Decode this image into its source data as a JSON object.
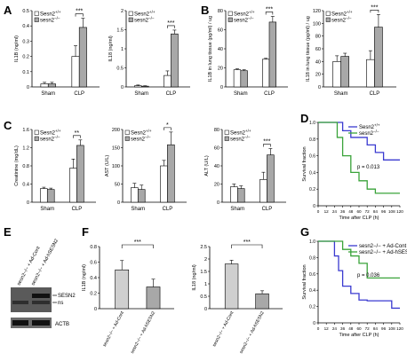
{
  "panel_letters": [
    "A",
    "B",
    "C",
    "D",
    "E",
    "F",
    "G"
  ],
  "western_blot": {
    "lanes": [
      "sesn2−/− + Ad-Cont",
      "sesn2−/− + Ad-hSESN2"
    ],
    "bands": [
      "SESN2",
      "ns",
      "ACTB"
    ]
  },
  "chart_data": [
    {
      "panel": "A",
      "type": "bar",
      "ylabel": "IL1B (ng/ml)",
      "ylim": [
        0,
        0.5
      ],
      "ticks": [
        0,
        0.1,
        0.2,
        0.3,
        0.4,
        0.5
      ],
      "tick_labels": [
        "0",
        "0.1",
        "0.2",
        "0.3",
        "0.4",
        "0.5"
      ],
      "categories": [
        "Sham",
        "CLP"
      ],
      "legend": [
        "Sesn2+/+",
        "sesn2−/−"
      ],
      "series": [
        {
          "name": "Sesn2+/+",
          "values": [
            0.02,
            0.2
          ],
          "errors": [
            0.01,
            0.07
          ]
        },
        {
          "name": "sesn2−/−",
          "values": [
            0.02,
            0.39
          ],
          "errors": [
            0.01,
            0.06
          ]
        }
      ],
      "significance": [
        {
          "category": "CLP",
          "label": "***"
        }
      ]
    },
    {
      "panel": "A",
      "type": "bar",
      "ylabel": "IL18 (ng/ml)",
      "ylim": [
        0,
        2
      ],
      "ticks": [
        0,
        0.5,
        1,
        1.5,
        2
      ],
      "tick_labels": [
        "0",
        "0.5",
        "1",
        "1.5",
        "2"
      ],
      "categories": [
        "Sham",
        "CLP"
      ],
      "legend": [
        "Sesn2+/+",
        "sesn2−/−"
      ],
      "series": [
        {
          "name": "Sesn2+/+",
          "values": [
            0.03,
            0.3
          ],
          "errors": [
            0.02,
            0.12
          ]
        },
        {
          "name": "sesn2−/−",
          "values": [
            0.02,
            1.39
          ],
          "errors": [
            0.01,
            0.1
          ]
        }
      ],
      "significance": [
        {
          "category": "CLP",
          "label": "***"
        }
      ]
    },
    {
      "panel": "B",
      "type": "bar",
      "ylabel": "IL1B in lung tissue (pg/ml) / ug",
      "ylim": [
        0,
        80
      ],
      "ticks": [
        0,
        20,
        40,
        60,
        80
      ],
      "tick_labels": [
        "0",
        "20",
        "40",
        "60",
        "80"
      ],
      "categories": [
        "Sham",
        "CLP"
      ],
      "legend": [
        "Sesn2+/+",
        "sesn2−/−"
      ],
      "series": [
        {
          "name": "Sesn2+/+",
          "values": [
            18,
            29
          ],
          "errors": [
            1,
            1
          ]
        },
        {
          "name": "sesn2−/−",
          "values": [
            17,
            68
          ],
          "errors": [
            1,
            6
          ]
        }
      ],
      "significance": [
        {
          "category": "CLP",
          "label": "***"
        }
      ]
    },
    {
      "panel": "B",
      "type": "bar",
      "ylabel": "IL18 in lung tissue (pg/ml) / ug",
      "ylim": [
        0,
        120
      ],
      "ticks": [
        0,
        20,
        40,
        60,
        80,
        100,
        120
      ],
      "tick_labels": [
        "0",
        "20",
        "40",
        "60",
        "80",
        "100",
        "120"
      ],
      "categories": [
        "Sham",
        "CLP"
      ],
      "legend": [
        "Sesn2+/+",
        "sesn2−/−"
      ],
      "series": [
        {
          "name": "Sesn2+/+",
          "values": [
            40,
            43
          ],
          "errors": [
            9,
            14
          ]
        },
        {
          "name": "sesn2−/−",
          "values": [
            48,
            94
          ],
          "errors": [
            5,
            20
          ]
        }
      ],
      "significance": [
        {
          "category": "CLP",
          "label": "***"
        }
      ]
    },
    {
      "panel": "C",
      "type": "bar",
      "ylabel": "Creatinine (mg/dL)",
      "ylim": [
        0,
        1.6
      ],
      "ticks": [
        0,
        0.4,
        0.8,
        1.2,
        1.6
      ],
      "tick_labels": [
        "0",
        "0.4",
        "0.8",
        "1.2",
        "1.6"
      ],
      "categories": [
        "Sham",
        "CLP"
      ],
      "legend": [
        "Sesn2+/+",
        "sesn2−/−"
      ],
      "series": [
        {
          "name": "Sesn2+/+",
          "values": [
            0.3,
            0.75
          ],
          "errors": [
            0.03,
            0.2
          ]
        },
        {
          "name": "sesn2−/−",
          "values": [
            0.28,
            1.25
          ],
          "errors": [
            0.03,
            0.12
          ]
        }
      ],
      "significance": [
        {
          "category": "CLP",
          "label": "**"
        }
      ]
    },
    {
      "panel": "C",
      "type": "bar",
      "ylabel": "AST (U/L)",
      "ylim": [
        0,
        200
      ],
      "ticks": [
        0,
        50,
        100,
        150,
        200
      ],
      "tick_labels": [
        "0",
        "50",
        "100",
        "150",
        "200"
      ],
      "categories": [
        "Sham",
        "CLP"
      ],
      "legend": [
        "Sesn2+/+",
        "sesn2−/−"
      ],
      "series": [
        {
          "name": "Sesn2+/+",
          "values": [
            40,
            100
          ],
          "errors": [
            12,
            15
          ]
        },
        {
          "name": "sesn2−/−",
          "values": [
            35,
            158
          ],
          "errors": [
            12,
            35
          ]
        }
      ],
      "significance": [
        {
          "category": "CLP",
          "label": "*"
        }
      ]
    },
    {
      "panel": "C",
      "type": "bar",
      "ylabel": "ALT (U/L)",
      "ylim": [
        0,
        80
      ],
      "ticks": [
        0,
        20,
        40,
        60,
        80
      ],
      "tick_labels": [
        "0",
        "20",
        "40",
        "60",
        "80"
      ],
      "categories": [
        "Sham",
        "CLP"
      ],
      "legend": [
        "Sesn2+/+",
        "sesn2−/−"
      ],
      "series": [
        {
          "name": "Sesn2+/+",
          "values": [
            17,
            25
          ],
          "errors": [
            3,
            8
          ]
        },
        {
          "name": "sesn2−/−",
          "values": [
            15,
            52
          ],
          "errors": [
            3,
            7
          ]
        }
      ],
      "significance": [
        {
          "category": "CLP",
          "label": "***"
        }
      ]
    },
    {
      "panel": "D",
      "type": "line",
      "step": true,
      "xlabel": "Time after CLP (h)",
      "ylabel": "Survival fraction",
      "xlim": [
        0,
        120
      ],
      "ylim": [
        0,
        1
      ],
      "xticks": [
        0,
        12,
        24,
        36,
        48,
        60,
        72,
        84,
        96,
        108,
        120
      ],
      "xtick_labels": [
        "0",
        "12",
        "24",
        "36",
        "48",
        "60",
        "72",
        "84",
        "96",
        "108",
        "120"
      ],
      "yticks": [
        0,
        0.2,
        0.4,
        0.6,
        0.8,
        1.0
      ],
      "ytick_labels": [
        "0",
        "0.2",
        "0.4",
        "0.6",
        "0.8",
        "1.0"
      ],
      "annotation": "p = 0.013",
      "series": [
        {
          "name": "Sesn2+/+",
          "color": "#3a3ad0",
          "x": [
            0,
            36,
            48,
            72,
            84,
            96,
            108,
            120
          ],
          "y": [
            1.0,
            0.9,
            0.82,
            0.73,
            0.64,
            0.55,
            0.55,
            0.55
          ]
        },
        {
          "name": "sesn2−/−",
          "color": "#3aa33a",
          "x": [
            0,
            28,
            36,
            48,
            60,
            72,
            84,
            120
          ],
          "y": [
            1.0,
            0.82,
            0.6,
            0.4,
            0.3,
            0.2,
            0.15,
            0.15
          ]
        }
      ]
    },
    {
      "panel": "F",
      "type": "bar",
      "ylabel": "IL1B (ng/ml)",
      "ylim": [
        0,
        0.8
      ],
      "ticks": [
        0,
        0.2,
        0.4,
        0.6,
        0.8
      ],
      "tick_labels": [
        "0",
        "0.2",
        "0.4",
        "0.6",
        "0.8"
      ],
      "categories": [
        "sesn2−/− + Ad-Cont",
        "sesn2−/− + Ad-hSESN2"
      ],
      "values": [
        0.5,
        0.28
      ],
      "errors": [
        0.12,
        0.1
      ],
      "significance": [
        {
          "label": "***"
        }
      ]
    },
    {
      "panel": "F",
      "type": "bar",
      "ylabel": "IL18 (ng/ml)",
      "ylim": [
        0,
        2.5
      ],
      "ticks": [
        0,
        0.5,
        1,
        1.5,
        2,
        2.5
      ],
      "tick_labels": [
        "0",
        "0.5",
        "1",
        "1.5",
        "2",
        "2.5"
      ],
      "categories": [
        "sesn2−/− + Ad-Cont",
        "sesn2−/− + Ad-hSESN2"
      ],
      "values": [
        1.8,
        0.6
      ],
      "errors": [
        0.15,
        0.12
      ],
      "significance": [
        {
          "label": "***"
        }
      ]
    },
    {
      "panel": "G",
      "type": "line",
      "step": true,
      "xlabel": "Time after CLP (h)",
      "ylabel": "Survival fraction",
      "xlim": [
        0,
        120
      ],
      "ylim": [
        0,
        1
      ],
      "xticks": [
        0,
        12,
        24,
        36,
        48,
        60,
        72,
        84,
        96,
        108,
        120
      ],
      "xtick_labels": [
        "0",
        "12",
        "24",
        "36",
        "48",
        "60",
        "72",
        "84",
        "96",
        "108",
        "120"
      ],
      "yticks": [
        0,
        0.2,
        0.4,
        0.6,
        0.8,
        1.0
      ],
      "ytick_labels": [
        "0",
        "0.2",
        "0.4",
        "0.6",
        "0.8",
        "1.0"
      ],
      "annotation": "p = 0.036",
      "series": [
        {
          "name": "sesn2−/− + Ad-Cont",
          "color": "#3a3ad0",
          "x": [
            0,
            24,
            30,
            36,
            48,
            60,
            72,
            84,
            108,
            120
          ],
          "y": [
            1.0,
            0.82,
            0.64,
            0.45,
            0.36,
            0.28,
            0.27,
            0.27,
            0.18,
            0.18
          ]
        },
        {
          "name": "sesn2−/− + Ad-hSESN2",
          "color": "#3aa33a",
          "x": [
            0,
            36,
            48,
            60,
            72,
            120
          ],
          "y": [
            1.0,
            0.9,
            0.82,
            0.73,
            0.55,
            0.55
          ]
        }
      ]
    }
  ]
}
